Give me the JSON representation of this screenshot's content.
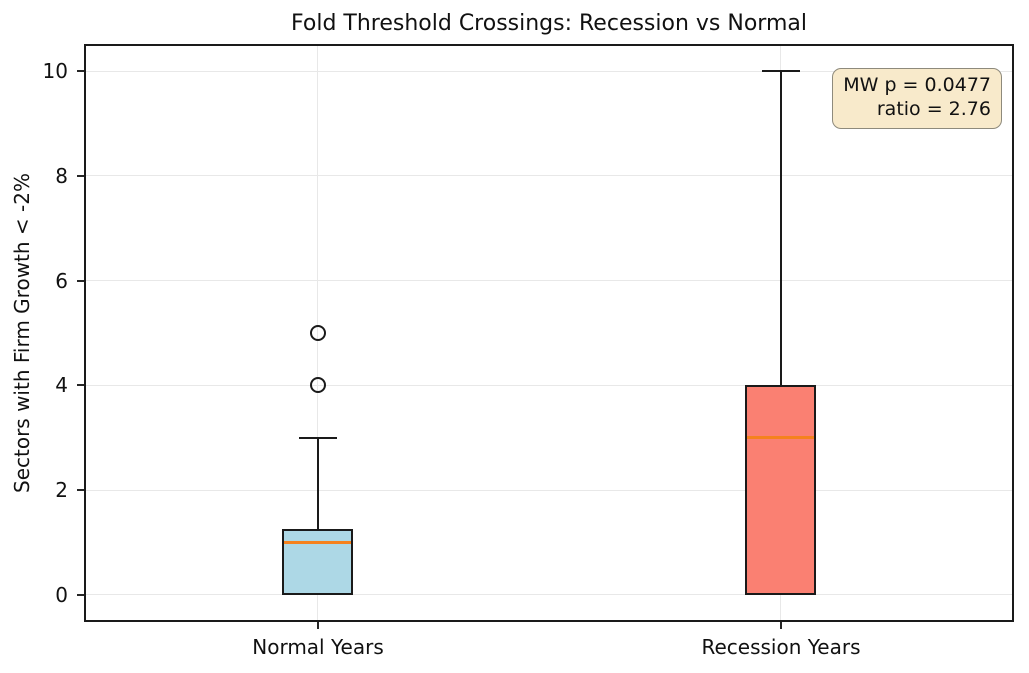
{
  "chart_data": {
    "type": "boxplot",
    "title": "Fold Threshold Crossings: Recession vs Normal",
    "ylabel": "Sectors with Firm Growth < -2%",
    "xlabel": "",
    "ylim": [
      -0.48,
      10.48
    ],
    "yticks": [
      0,
      2,
      4,
      6,
      8,
      10
    ],
    "grid": true,
    "legend_position": "none",
    "colors": {
      "median": "#f5821e",
      "edge": "#1a1a1a",
      "gridline": "#e8e8e8",
      "annotation_bg": "#f8eacb",
      "annotation_border": "#8e8a7c"
    },
    "annotation": {
      "lines": [
        "MW p = 0.0477",
        "ratio = 2.76"
      ]
    },
    "series": [
      {
        "label": "Normal Years",
        "x_fraction": 0.25,
        "whisker_low": 0,
        "q1": 0,
        "median": 1.0,
        "q3": 1.25,
        "whisker_high": 3,
        "outliers": [
          4,
          5
        ],
        "fill_color": "#add8e6"
      },
      {
        "label": "Recession Years",
        "x_fraction": 0.75,
        "whisker_low": 0,
        "q1": 0,
        "median": 3.0,
        "q3": 4.0,
        "whisker_high": 10,
        "outliers": [],
        "fill_color": "#fa8072"
      }
    ]
  }
}
